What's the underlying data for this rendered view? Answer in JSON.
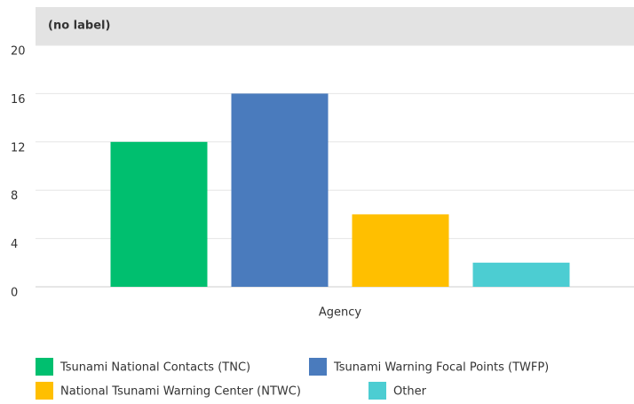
{
  "chart_data": {
    "type": "bar",
    "title": "(no label)",
    "categories": [
      "Agency"
    ],
    "series": [
      {
        "name": "Tsunami National Contacts (TNC)",
        "color": "#00bf6f",
        "values": [
          12
        ]
      },
      {
        "name": "Tsunami Warning Focal Points (TWFP)",
        "color": "#4a7bbd",
        "values": [
          16
        ]
      },
      {
        "name": "National Tsunami Warning Center (NTWC)",
        "color": "#ffbf00",
        "values": [
          6
        ]
      },
      {
        "name": "Other",
        "color": "#4ccdd2",
        "values": [
          2
        ]
      }
    ],
    "ylim": [
      0,
      20
    ],
    "yticks": [
      0,
      4,
      8,
      12,
      16,
      20
    ],
    "grid": true
  }
}
